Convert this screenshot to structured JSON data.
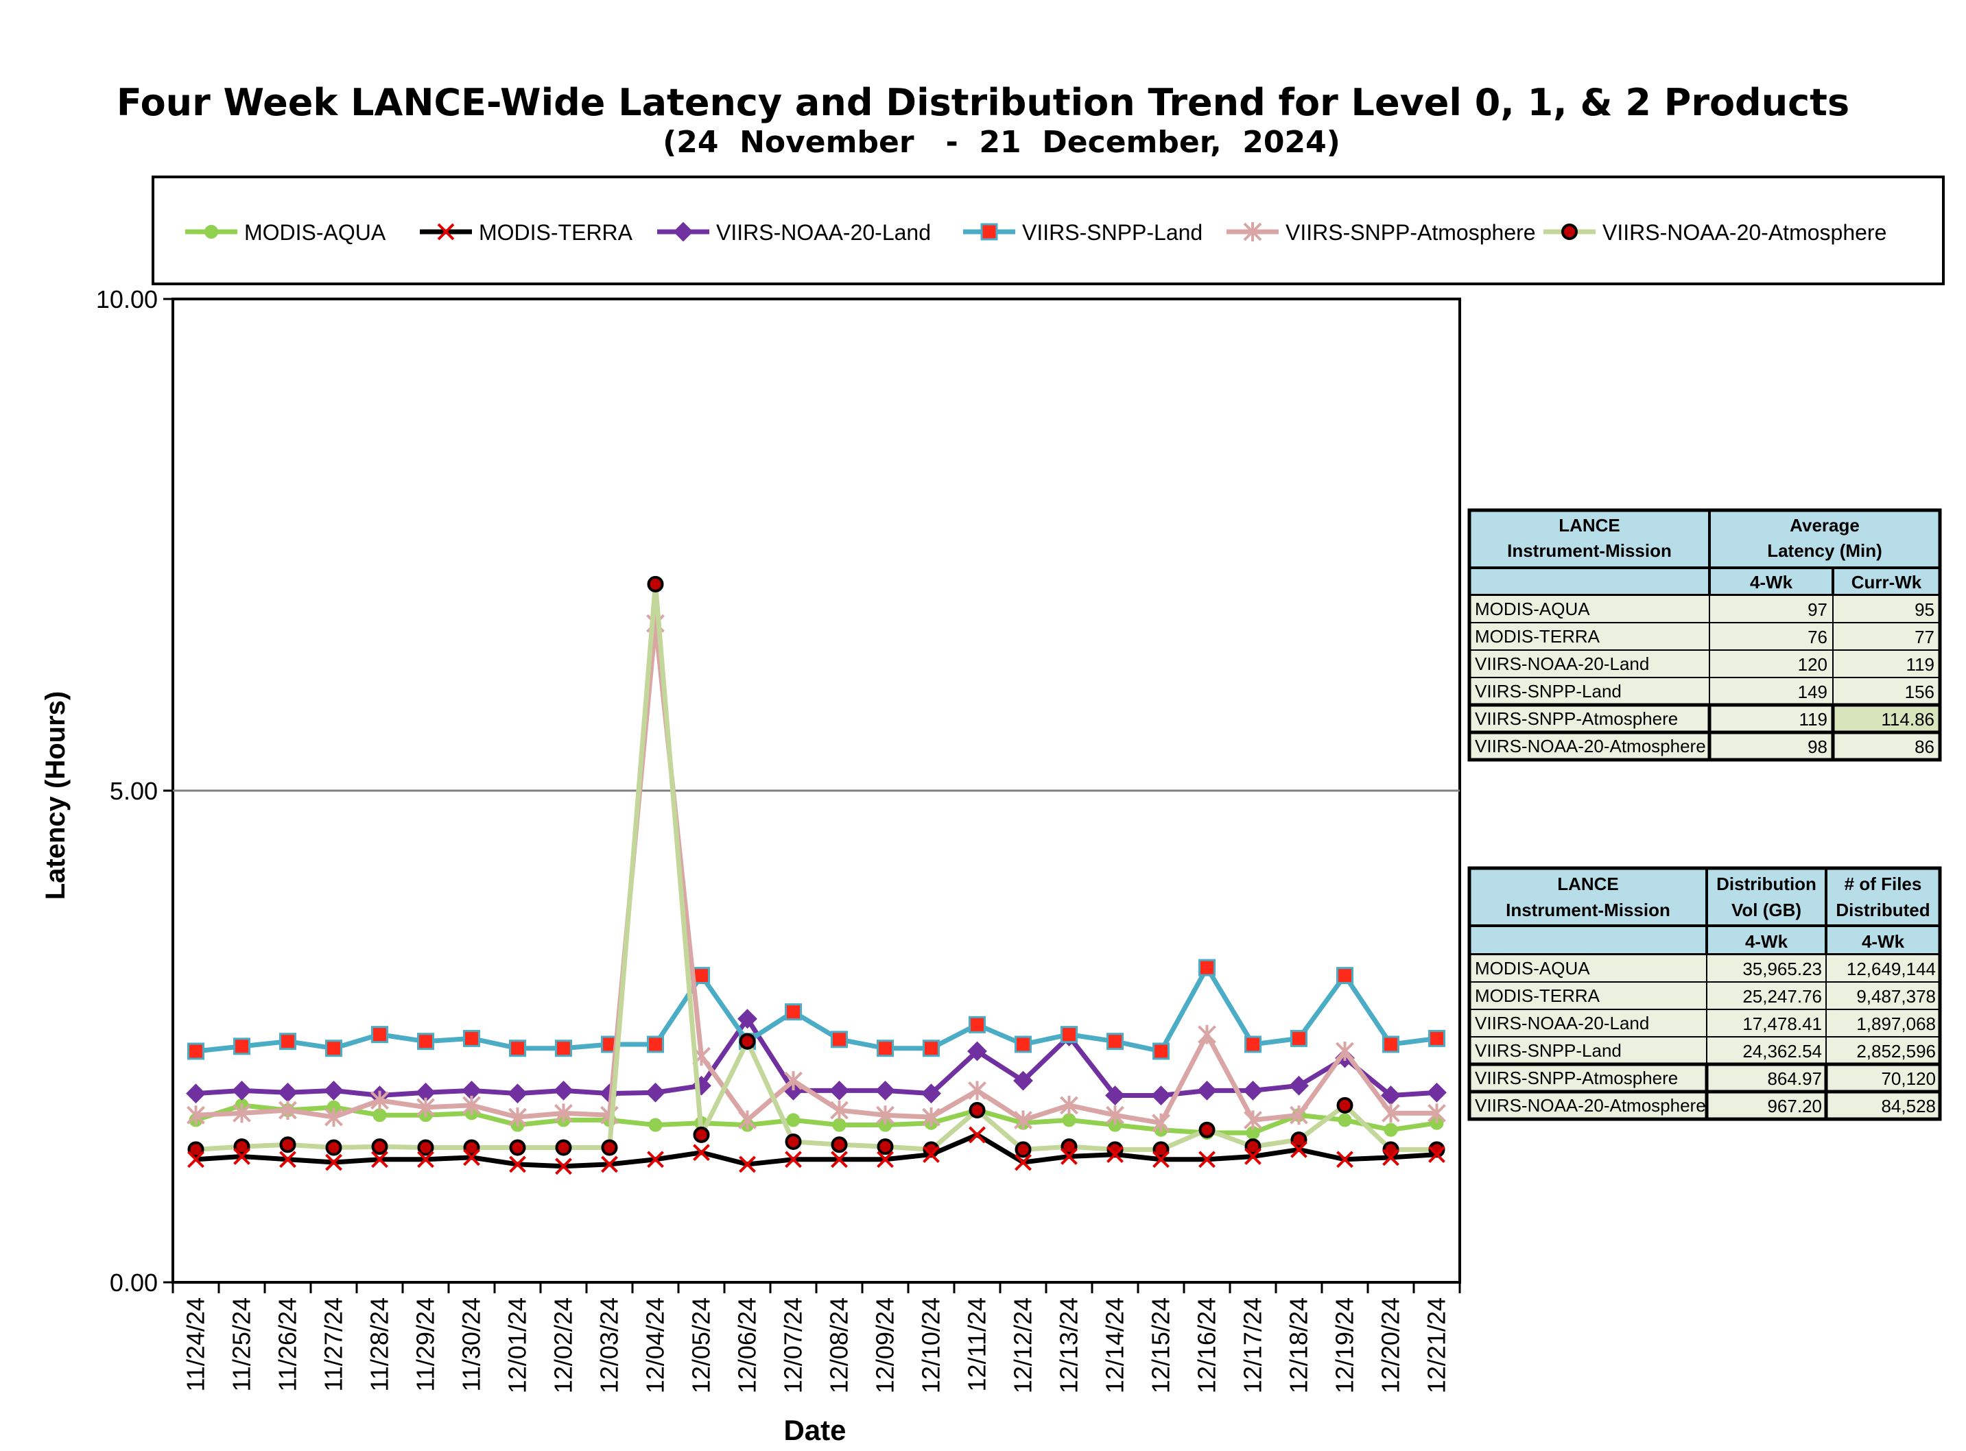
{
  "chart_data": {
    "type": "line",
    "title": "Four Week LANCE-Wide Latency and Distribution Trend for Level 0, 1, & 2 Products",
    "subtitle": "(24  November   -  21  December,  2024)",
    "xlabel": "Date",
    "ylabel": "Latency (Hours)",
    "ylim": [
      0,
      10
    ],
    "yticks": [
      "0.00",
      "5.00",
      "10.00"
    ],
    "grid": "horizontal",
    "legend_position": "top",
    "categories": [
      "11/24/24",
      "11/25/24",
      "11/26/24",
      "11/27/24",
      "11/28/24",
      "11/29/24",
      "11/30/24",
      "12/01/24",
      "12/02/24",
      "12/03/24",
      "12/04/24",
      "12/05/24",
      "12/06/24",
      "12/07/24",
      "12/08/24",
      "12/09/24",
      "12/10/24",
      "12/11/24",
      "12/12/24",
      "12/13/24",
      "12/14/24",
      "12/15/24",
      "12/16/24",
      "12/17/24",
      "12/18/24",
      "12/19/24",
      "12/20/24",
      "12/21/24"
    ],
    "series": [
      {
        "name": "MODIS-AQUA",
        "color": "#92d050",
        "marker": "circle",
        "values": [
          1.65,
          1.8,
          1.75,
          1.78,
          1.7,
          1.7,
          1.72,
          1.6,
          1.65,
          1.65,
          1.6,
          1.62,
          1.6,
          1.65,
          1.6,
          1.6,
          1.62,
          1.75,
          1.62,
          1.65,
          1.6,
          1.55,
          1.52,
          1.52,
          1.7,
          1.65,
          1.55,
          1.62
        ]
      },
      {
        "name": "MODIS-TERRA",
        "color": "#000000",
        "marker": "x",
        "values": [
          1.25,
          1.28,
          1.25,
          1.22,
          1.25,
          1.25,
          1.27,
          1.2,
          1.18,
          1.2,
          1.25,
          1.32,
          1.2,
          1.25,
          1.25,
          1.25,
          1.3,
          1.5,
          1.22,
          1.28,
          1.3,
          1.25,
          1.25,
          1.28,
          1.35,
          1.25,
          1.27,
          1.3
        ]
      },
      {
        "name": "VIIRS-NOAA-20-Land",
        "color": "#7030a0",
        "marker": "diamond",
        "values": [
          1.92,
          1.95,
          1.93,
          1.95,
          1.9,
          1.93,
          1.95,
          1.92,
          1.95,
          1.92,
          1.93,
          2.0,
          2.68,
          1.95,
          1.95,
          1.95,
          1.92,
          2.35,
          2.05,
          2.5,
          1.9,
          1.9,
          1.95,
          1.95,
          2.0,
          2.28,
          1.9,
          1.93
        ]
      },
      {
        "name": "VIIRS-SNPP-Land",
        "color": "#4bacc6",
        "marker": "square",
        "values": [
          2.35,
          2.4,
          2.45,
          2.38,
          2.52,
          2.45,
          2.48,
          2.38,
          2.38,
          2.42,
          2.42,
          3.12,
          2.45,
          2.75,
          2.47,
          2.38,
          2.38,
          2.62,
          2.42,
          2.52,
          2.45,
          2.35,
          3.2,
          2.42,
          2.48,
          3.12,
          2.42,
          2.48
        ]
      },
      {
        "name": "VIIRS-SNPP-Atmosphere",
        "color": "#d9a5a5",
        "marker": "asterisk",
        "values": [
          1.7,
          1.72,
          1.75,
          1.68,
          1.85,
          1.78,
          1.8,
          1.68,
          1.72,
          1.7,
          6.7,
          2.3,
          1.65,
          2.05,
          1.75,
          1.7,
          1.68,
          1.95,
          1.65,
          1.8,
          1.7,
          1.62,
          2.52,
          1.65,
          1.7,
          2.35,
          1.72,
          1.72
        ]
      },
      {
        "name": "VIIRS-NOAA-20-Atmosphere",
        "color": "#c4d79b",
        "marker": "dot",
        "values": [
          1.35,
          1.38,
          1.4,
          1.37,
          1.38,
          1.37,
          1.37,
          1.37,
          1.37,
          1.37,
          7.1,
          1.5,
          2.45,
          1.43,
          1.4,
          1.38,
          1.35,
          1.75,
          1.35,
          1.38,
          1.35,
          1.35,
          1.55,
          1.38,
          1.45,
          1.8,
          1.35,
          1.35
        ]
      }
    ]
  },
  "latency_table": {
    "header_col1": [
      "LANCE",
      "Instrument-Mission"
    ],
    "header_col2": [
      "Average",
      "Latency (Min)"
    ],
    "sub_headers": [
      "4-Wk",
      "Curr-Wk"
    ],
    "rows": [
      {
        "name": "MODIS-AQUA",
        "four_wk": "97",
        "curr_wk": "95"
      },
      {
        "name": "MODIS-TERRA",
        "four_wk": "76",
        "curr_wk": "77"
      },
      {
        "name": "VIIRS-NOAA-20-Land",
        "four_wk": "120",
        "curr_wk": "119"
      },
      {
        "name": "VIIRS-SNPP-Land",
        "four_wk": "149",
        "curr_wk": "156"
      },
      {
        "name": "VIIRS-SNPP-Atmosphere",
        "four_wk": "119",
        "curr_wk": "114.86"
      },
      {
        "name": "VIIRS-NOAA-20-Atmosphere",
        "four_wk": "98",
        "curr_wk": "86"
      }
    ]
  },
  "distribution_table": {
    "header_col1": [
      "LANCE",
      "Instrument-Mission"
    ],
    "header_col2": [
      "Distribution",
      "Vol (GB)"
    ],
    "header_col3": [
      "# of Files",
      "Distributed"
    ],
    "sub_headers": [
      "4-Wk",
      "4-Wk"
    ],
    "rows": [
      {
        "name": "MODIS-AQUA",
        "vol": "35,965.23",
        "files": "12,649,144"
      },
      {
        "name": "MODIS-TERRA",
        "vol": "25,247.76",
        "files": "9,487,378"
      },
      {
        "name": "VIIRS-NOAA-20-Land",
        "vol": "17,478.41",
        "files": "1,897,068"
      },
      {
        "name": "VIIRS-SNPP-Land",
        "vol": "24,362.54",
        "files": "2,852,596"
      },
      {
        "name": "VIIRS-SNPP-Atmosphere",
        "vol": "864.97",
        "files": "70,120"
      },
      {
        "name": "VIIRS-NOAA-20-Atmosphere",
        "vol": "967.20",
        "files": "84,528"
      }
    ]
  },
  "colors": {
    "header_fill": "#b7dee8",
    "row_fill": "#ebf1de",
    "highlight_fill": "#d8e4bc",
    "gridline": "#808080"
  }
}
